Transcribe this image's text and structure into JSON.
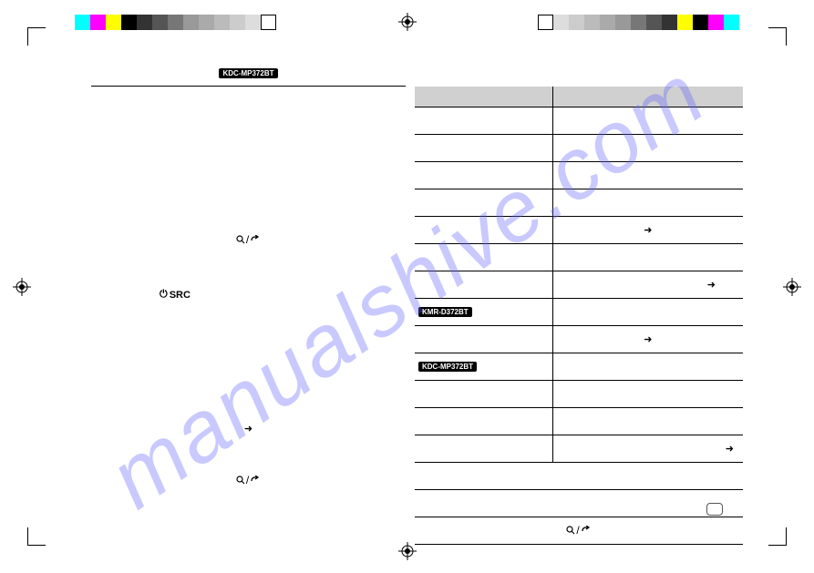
{
  "watermark": "manualshive.com",
  "colorbars": {
    "left": [
      "#00ffff",
      "#ff00ff",
      "#ffff00",
      "#000000",
      "#333333",
      "#555555",
      "#777777",
      "#999999",
      "#aaaaaa",
      "#bbbbbb",
      "#cccccc",
      "#dddddd",
      "#ffffff"
    ],
    "right": [
      "#ffffff",
      "#dddddd",
      "#cccccc",
      "#bbbbbb",
      "#aaaaaa",
      "#999999",
      "#777777",
      "#555555",
      "#333333",
      "#ffff00",
      "#000000",
      "#ff00ff",
      "#00ffff"
    ]
  },
  "badges": {
    "mp372": "KDC-MP372BT",
    "kmr": "KMR-D372BT"
  },
  "labels": {
    "src": "SRC"
  },
  "table": {
    "header_bg": "#d0d0d0",
    "border_color": "#000000",
    "rows": 17
  }
}
